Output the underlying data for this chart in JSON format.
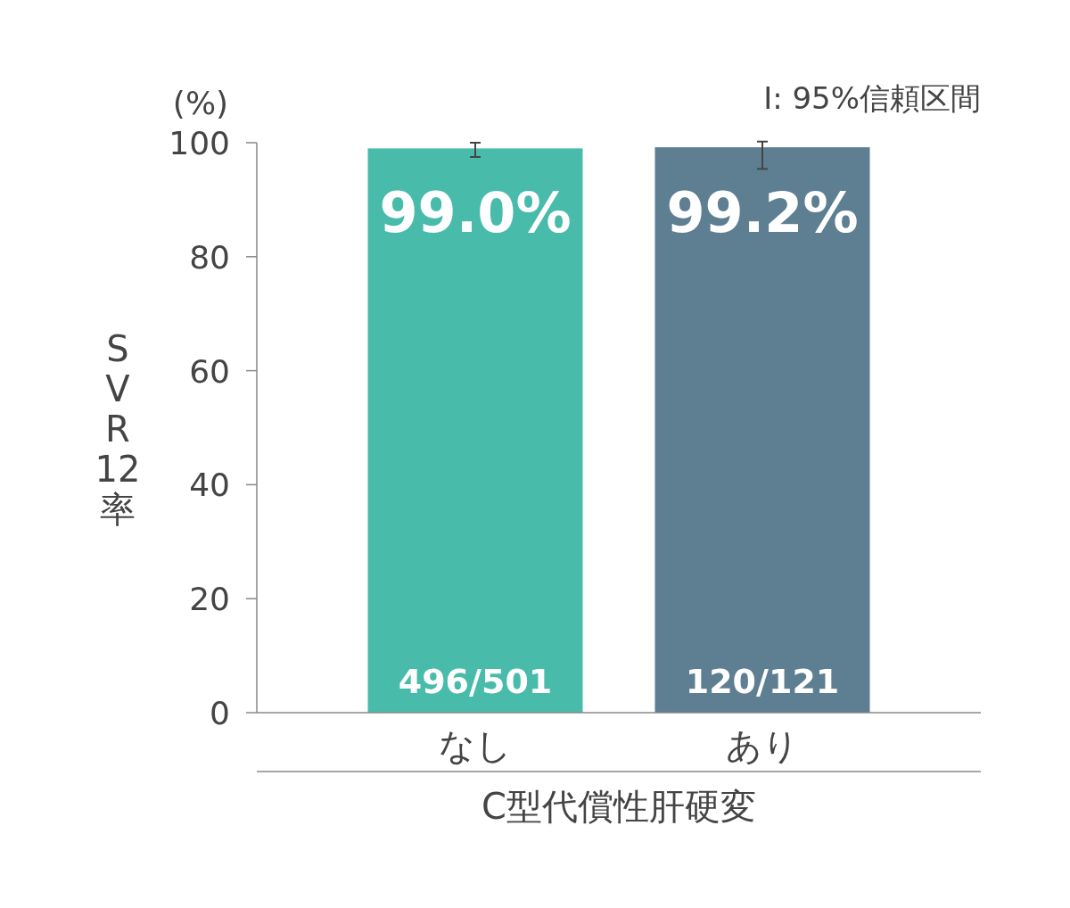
{
  "chart_data": {
    "type": "bar",
    "xlabel": "C型代償性肝硬変",
    "ylabel": "SVR12率",
    "categories": [
      "なし",
      "あり"
    ],
    "values": [
      99.0,
      99.2
    ],
    "colors": [
      "#48bbab",
      "#5e7e92"
    ],
    "errors": [
      [
        97.5,
        100.0
      ],
      [
        95.4,
        100.2
      ]
    ],
    "value_labels": [
      "99.0%",
      "99.2%"
    ],
    "ylim": [
      0,
      100
    ],
    "yticks": [
      0,
      20,
      40,
      60,
      80,
      100
    ],
    "annotations": [
      "(%)",
      "I: 95%信頼区間",
      {
        "text": "496/501",
        "x": "なし",
        "y": 0
      },
      {
        "text": "120/121",
        "x": "あり",
        "y": 0
      }
    ]
  }
}
